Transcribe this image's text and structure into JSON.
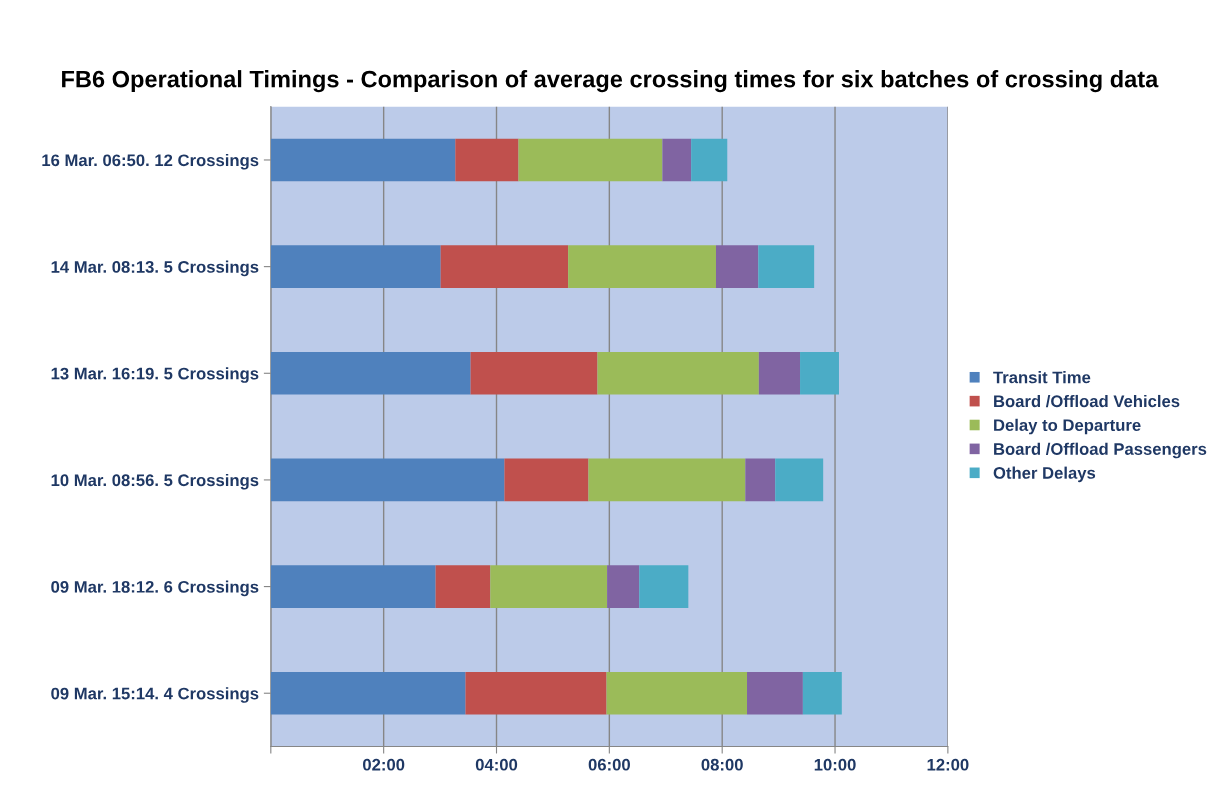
{
  "chart_data": {
    "type": "bar",
    "orientation": "horizontal",
    "stacked": true,
    "title": "FB6 Operational Timings - Comparison of average crossing times for six batches of crossing data",
    "categories": [
      "16 Mar. 06:50. 12 Crossings",
      "14 Mar. 08:13. 5 Crossings",
      "13 Mar. 16:19. 5 Crossings",
      "10 Mar. 08:56. 5 Crossings",
      "09 Mar. 18:12. 6 Crossings",
      "09 Mar. 15:14. 4 Crossings"
    ],
    "series": [
      {
        "name": "Transit Time",
        "color": "#4f81bd",
        "values": [
          3.27,
          3.01,
          3.54,
          4.14,
          2.92,
          3.45
        ]
      },
      {
        "name": "Board /Offload Vehicles",
        "color": "#c0504d",
        "values": [
          1.12,
          2.26,
          2.25,
          1.49,
          0.97,
          2.5
        ]
      },
      {
        "name": "Delay to Departure",
        "color": "#9bbb59",
        "values": [
          2.55,
          2.62,
          2.86,
          2.78,
          2.07,
          2.49
        ]
      },
      {
        "name": "Board /Offload Passengers",
        "color": "#8064a2",
        "values": [
          0.51,
          0.75,
          0.73,
          0.53,
          0.57,
          0.99
        ]
      },
      {
        "name": "Other Delays",
        "color": "#4bacc6",
        "values": [
          0.64,
          0.99,
          0.69,
          0.85,
          0.87,
          0.69
        ]
      }
    ],
    "xlim": [
      0,
      12
    ],
    "xticks": [
      {
        "value": 0,
        "label": null
      },
      {
        "value": 2,
        "label": "02:00"
      },
      {
        "value": 4,
        "label": "04:00"
      },
      {
        "value": 6,
        "label": "06:00"
      },
      {
        "value": 8,
        "label": "08:00"
      },
      {
        "value": 10,
        "label": "10:00"
      },
      {
        "value": 12,
        "label": "12:00"
      }
    ],
    "grid": "x",
    "legend": "right"
  }
}
